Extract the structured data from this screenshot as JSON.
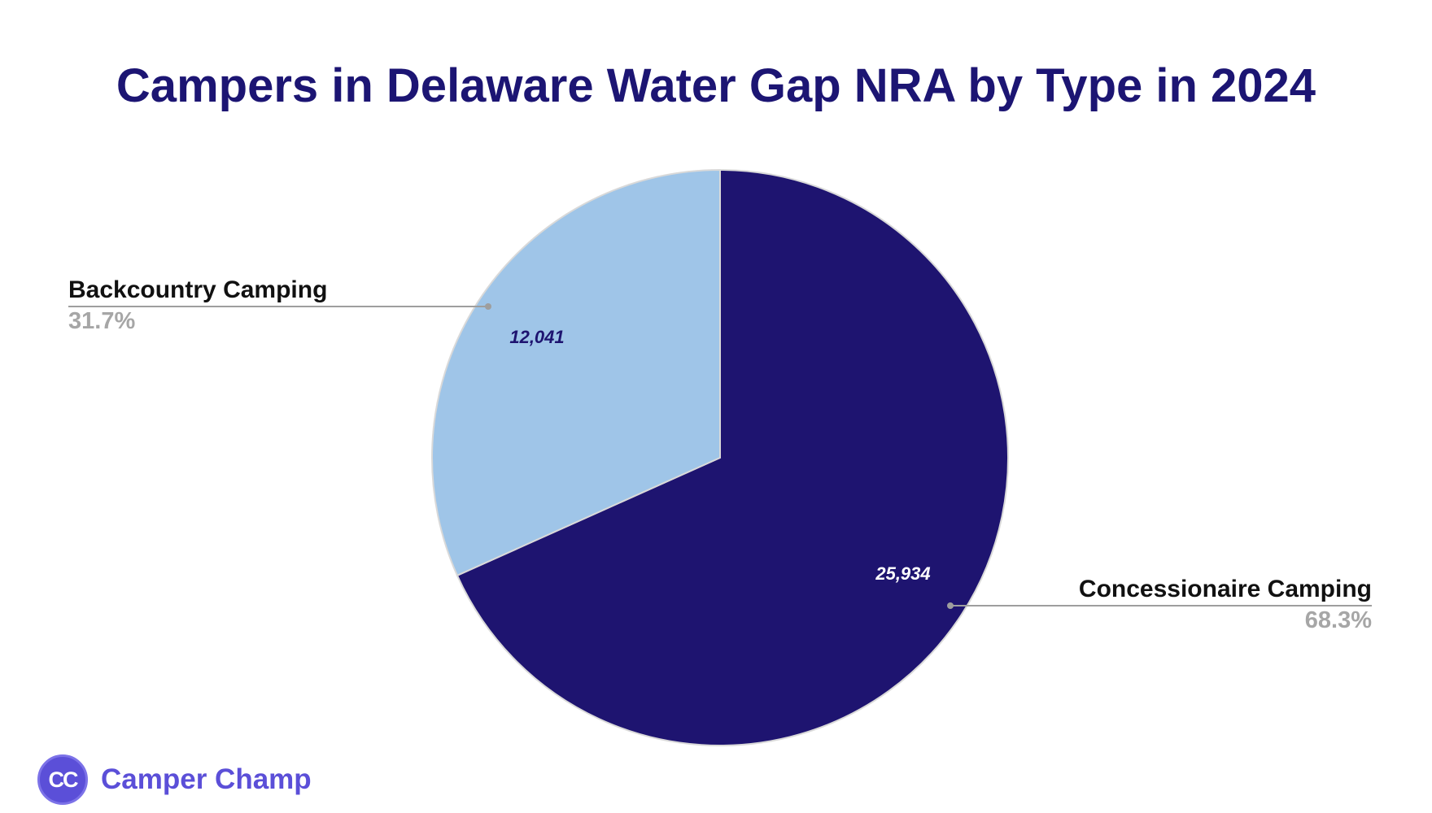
{
  "chart_data": {
    "type": "pie",
    "title": "Campers in Delaware Water Gap NRA by Type in 2024",
    "slices": [
      {
        "label": "Concessionaire Camping",
        "value": 25934,
        "value_label": "25,934",
        "percent_label": "68.3%",
        "color": "#1e1470",
        "text_color": "#ffffff"
      },
      {
        "label": "Backcountry Camping",
        "value": 12041,
        "value_label": "12,041",
        "percent_label": "31.7%",
        "color": "#9fc5e8",
        "text_color": "#1e1470"
      }
    ],
    "start_angle_deg": 0,
    "direction": "clockwise",
    "legend": "outside labels with leader lines"
  },
  "brand": {
    "logo_text": "CC",
    "name": "Camper Champ",
    "color": "#5b4fd8"
  }
}
